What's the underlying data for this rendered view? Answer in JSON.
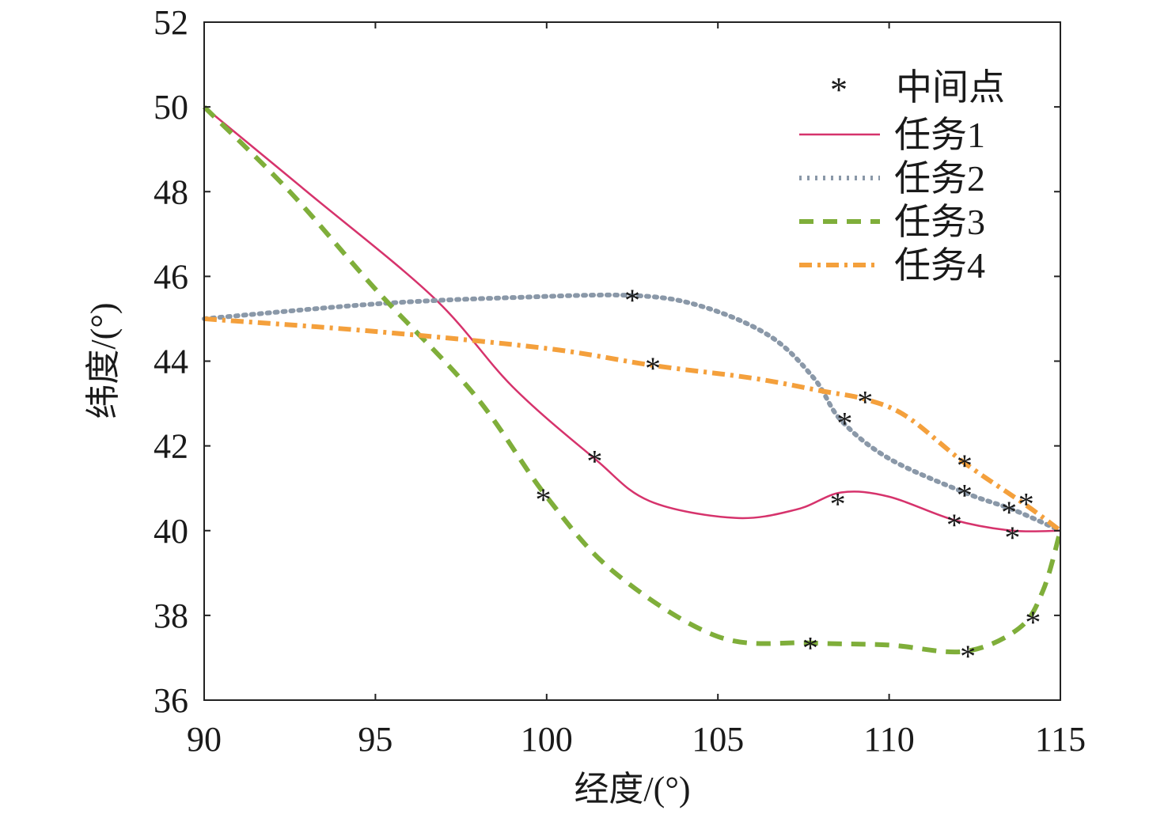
{
  "chart_data": {
    "type": "line",
    "title": "",
    "xlabel": "经度/(°)",
    "ylabel": "纬度/(°)",
    "xlim": [
      90,
      115
    ],
    "ylim": [
      36,
      52
    ],
    "xticks": [
      90,
      95,
      100,
      105,
      110,
      115
    ],
    "yticks": [
      36,
      38,
      40,
      42,
      44,
      46,
      48,
      50,
      52
    ],
    "grid": false,
    "legend_position": "top-right",
    "marker_legend": {
      "label": "中间点",
      "symbol": "*"
    },
    "series": [
      {
        "name": "任务1",
        "style": "solid",
        "color": "#d6336c",
        "points": [
          [
            90,
            50
          ],
          [
            93,
            48
          ],
          [
            96.7,
            45.5
          ],
          [
            99,
            43.4
          ],
          [
            101.4,
            41.7
          ],
          [
            103,
            40.7
          ],
          [
            105.5,
            40.3
          ],
          [
            107.3,
            40.5
          ],
          [
            108.6,
            40.9
          ],
          [
            110,
            40.8
          ],
          [
            111.9,
            40.25
          ],
          [
            113.6,
            40.0
          ],
          [
            115,
            40
          ]
        ],
        "waypoints": [
          [
            101.4,
            41.7
          ],
          [
            108.5,
            40.7
          ],
          [
            111.9,
            40.2
          ],
          [
            113.6,
            39.9
          ]
        ]
      },
      {
        "name": "任务2",
        "style": "dotted",
        "color": "#8a98a8",
        "points": [
          [
            90,
            45
          ],
          [
            95,
            45.35
          ],
          [
            99,
            45.5
          ],
          [
            102.5,
            45.55
          ],
          [
            104.5,
            45.3
          ],
          [
            106.5,
            44.6
          ],
          [
            107.8,
            43.6
          ],
          [
            108.6,
            42.6
          ],
          [
            110,
            41.7
          ],
          [
            112.2,
            40.9
          ],
          [
            113.6,
            40.5
          ],
          [
            115,
            40
          ]
        ],
        "waypoints": [
          [
            102.5,
            45.5
          ],
          [
            108.7,
            42.6
          ],
          [
            112.2,
            40.9
          ],
          [
            113.5,
            40.5
          ]
        ]
      },
      {
        "name": "任务3",
        "style": "dashed",
        "color": "#7fae3a",
        "points": [
          [
            90,
            50
          ],
          [
            92.5,
            48
          ],
          [
            95,
            45.7
          ],
          [
            97.9,
            43.2
          ],
          [
            100,
            40.8
          ],
          [
            102,
            39
          ],
          [
            105,
            37.5
          ],
          [
            107.7,
            37.35
          ],
          [
            110,
            37.3
          ],
          [
            112.2,
            37.15
          ],
          [
            113.8,
            37.7
          ],
          [
            114.5,
            38.6
          ],
          [
            115,
            40
          ]
        ],
        "waypoints": [
          [
            99.9,
            40.8
          ],
          [
            107.7,
            37.3
          ],
          [
            112.3,
            37.1
          ],
          [
            114.2,
            37.9
          ]
        ]
      },
      {
        "name": "任务4",
        "style": "dashdot",
        "color": "#f4a03c",
        "points": [
          [
            90,
            45
          ],
          [
            95,
            44.7
          ],
          [
            100,
            44.3
          ],
          [
            103.1,
            43.9
          ],
          [
            106,
            43.6
          ],
          [
            108,
            43.3
          ],
          [
            109.3,
            43.1
          ],
          [
            110.5,
            42.7
          ],
          [
            112.2,
            41.6
          ],
          [
            114,
            40.6
          ],
          [
            115,
            40
          ]
        ],
        "waypoints": [
          [
            103.1,
            43.9
          ],
          [
            109.3,
            43.1
          ],
          [
            112.2,
            41.6
          ],
          [
            114,
            40.7
          ]
        ]
      }
    ]
  }
}
